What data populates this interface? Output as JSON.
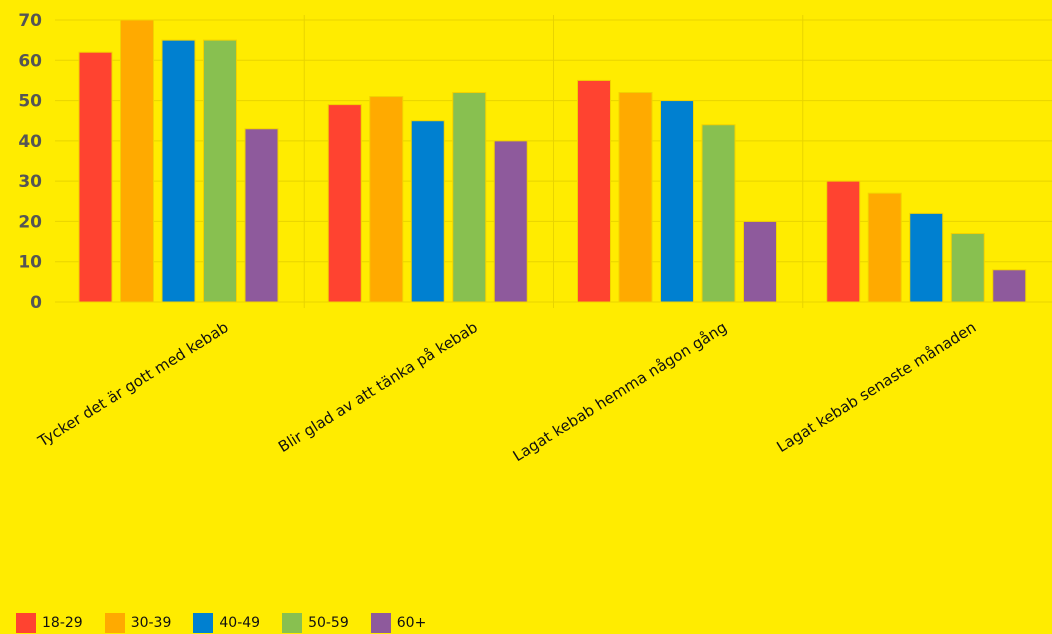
{
  "chart_data": {
    "type": "bar",
    "categories": [
      "Tycker det är gott med kebab",
      "Blir glad av att tänka på kebab",
      "Lagat kebab hemma någon gång",
      "Lagat kebab senaste månaden"
    ],
    "series": [
      {
        "name": "18-29",
        "color": "#ff4330",
        "values": [
          62,
          49,
          55,
          30
        ]
      },
      {
        "name": "30-39",
        "color": "#ffaa00",
        "values": [
          70,
          51,
          52,
          27
        ]
      },
      {
        "name": "40-49",
        "color": "#0080d0",
        "values": [
          65,
          45,
          50,
          22
        ]
      },
      {
        "name": "50-59",
        "color": "#88c050",
        "values": [
          65,
          52,
          44,
          17
        ]
      },
      {
        "name": "60+",
        "color": "#8e5a9c",
        "values": [
          43,
          40,
          20,
          8
        ]
      }
    ],
    "yticks": [
      0,
      10,
      20,
      30,
      40,
      50,
      60,
      70
    ],
    "ylim": [
      0,
      70
    ],
    "grid": true,
    "legend_position": "bottom-left"
  }
}
